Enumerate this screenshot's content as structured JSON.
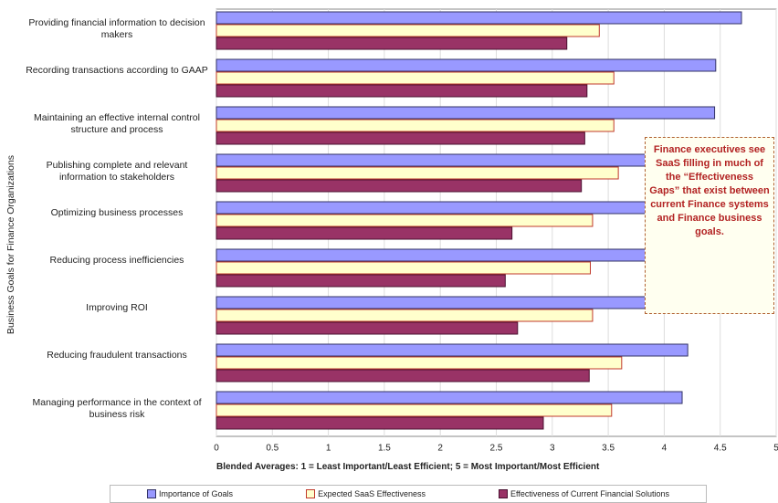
{
  "chart_data": {
    "type": "hbar",
    "y_axis_title": "Business Goals for Finance Organizations",
    "x_axis_title": "Blended Averages: 1 = Least  Important/Least Efficient; 5 = Most Important/Most Efficient",
    "annotation": "Finance executives see SaaS filling in much of the “Effectiveness Gaps” that exist between current Finance systems and Finance business goals.",
    "categories": [
      "Providing financial information to decision makers",
      "Recording transactions according to GAAP",
      "Maintaining an effective internal control structure and process",
      "Publishing complete and relevant information to stakeholders",
      "Optimizing business processes",
      "Reducing process inefficiencies",
      "Improving ROI",
      "Reducing fraudulent transactions",
      "Managing performance in the context of business risk"
    ],
    "series": [
      {
        "name": "Importance of Goals",
        "color": "#9999ff",
        "values": [
          4.69,
          4.46,
          4.45,
          4.4,
          4.3,
          4.2,
          4.3,
          4.21,
          4.16
        ]
      },
      {
        "name": "Expected SaaS Effectiveness",
        "color": "#ffffcc",
        "values": [
          3.42,
          3.55,
          3.55,
          3.59,
          3.36,
          3.34,
          3.36,
          3.62,
          3.53
        ]
      },
      {
        "name": "Effectiveness of Current Financial Solutions",
        "color": "#993366",
        "values": [
          3.13,
          3.31,
          3.29,
          3.26,
          2.64,
          2.58,
          2.69,
          3.33,
          2.92
        ]
      }
    ],
    "xlim": [
      0,
      5
    ],
    "xticks": [
      0,
      0.5,
      1,
      1.5,
      2,
      2.5,
      3,
      3.5,
      4,
      4.5,
      5
    ],
    "grid": true
  }
}
